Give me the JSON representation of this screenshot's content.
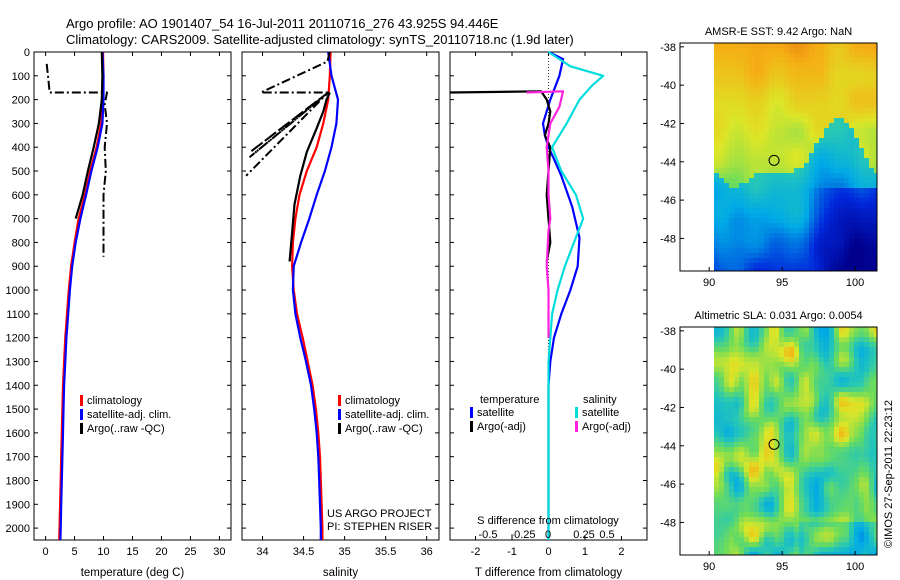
{
  "header": {
    "title_line1": "Argo profile: AO 1901407_54 16-Jul-2011 20110716_276 43.925S 94.446E",
    "title_line2": "Climatology: CARS2009. Satellite-adjusted climatology: synTS_20110718.nc (1.9d later)"
  },
  "footer": {
    "project_line1": "US ARGO PROJECT",
    "project_line2": "PI: STEPHEN RISER",
    "credit": "©IMOS 27-Sep-2011 22:23:12"
  },
  "colors": {
    "climatology": "#ff0000",
    "satellite": "#0000ff",
    "argo": "#000000",
    "satellite_salinity": "#00dddd",
    "argo_salinity": "#ff22dd"
  },
  "chart_data": [
    {
      "id": "temp",
      "type": "line",
      "xlabel": "temperature (deg C)",
      "ylabel": "",
      "xlim": [
        -2,
        32
      ],
      "ylim": [
        2050,
        0
      ],
      "xticks": [
        0,
        5,
        10,
        15,
        20,
        25,
        30
      ],
      "yticks": [
        0,
        100,
        200,
        300,
        400,
        500,
        600,
        700,
        800,
        900,
        1000,
        1100,
        1200,
        1300,
        1400,
        1500,
        1600,
        1700,
        1800,
        1900,
        2000
      ],
      "legend": [
        "climatology",
        "satellite-adj. clim.",
        "Argo(..raw -QC)"
      ],
      "series": [
        {
          "name": "climatology",
          "color": "#ff0000",
          "style": "solid",
          "x": [
            9.9,
            10.0,
            9.9,
            9.6,
            8.8,
            7.7,
            6.8,
            5.7,
            5.0,
            4.4,
            4.0,
            3.7,
            3.4,
            3.2,
            3.0,
            2.9,
            2.8,
            2.7,
            2.6,
            2.5,
            2.4,
            2.35
          ],
          "y": [
            0,
            100,
            200,
            300,
            400,
            500,
            600,
            700,
            800,
            900,
            1000,
            1100,
            1200,
            1300,
            1400,
            1500,
            1600,
            1700,
            1800,
            1900,
            2000,
            2050
          ]
        },
        {
          "name": "satellite-adj. clim.",
          "color": "#0000ff",
          "style": "solid",
          "x": [
            9.8,
            10.0,
            10.0,
            9.8,
            9.0,
            7.9,
            7.0,
            6.0,
            5.2,
            4.6,
            4.2,
            3.9,
            3.6,
            3.4,
            3.2,
            3.1,
            3.0,
            2.9,
            2.8,
            2.7,
            2.6,
            2.55
          ],
          "y": [
            0,
            100,
            200,
            300,
            400,
            500,
            600,
            700,
            800,
            900,
            1000,
            1100,
            1200,
            1300,
            1400,
            1500,
            1600,
            1700,
            1800,
            1900,
            2000,
            2050
          ]
        },
        {
          "name": "Argo(..raw -QC)",
          "color": "#000000",
          "style": "solid",
          "x": [
            9.7,
            9.8,
            9.7,
            9.2,
            8.3,
            7.3,
            6.4,
            5.2
          ],
          "y": [
            0,
            100,
            200,
            300,
            400,
            500,
            600,
            700
          ]
        },
        {
          "name": "Argo raw",
          "color": "#000000",
          "style": "dashdot",
          "x": [
            0.2,
            0.5,
            0.7,
            10.6,
            10.2,
            10.6,
            10.2,
            10.4,
            10.0,
            10.0
          ],
          "y": [
            50,
            120,
            170,
            170,
            220,
            300,
            400,
            500,
            600,
            860
          ]
        }
      ]
    },
    {
      "id": "sal",
      "type": "line",
      "xlabel": "salinity",
      "ylabel": "",
      "xlim": [
        33.75,
        36.15
      ],
      "ylim": [
        2050,
        0
      ],
      "xticks": [
        34,
        34.5,
        35,
        35.5,
        36
      ],
      "legend": [
        "climatology",
        "satellite-adj. clim.",
        "Argo(..raw -QC)"
      ],
      "series": [
        {
          "name": "climatology",
          "color": "#ff0000",
          "style": "solid",
          "x": [
            34.83,
            34.82,
            34.8,
            34.74,
            34.66,
            34.54,
            34.45,
            34.4,
            34.37,
            34.36,
            34.38,
            34.42,
            34.49,
            34.55,
            34.61,
            34.65,
            34.68,
            34.7,
            34.71,
            34.72,
            34.73,
            34.73
          ],
          "y": [
            0,
            100,
            200,
            300,
            400,
            500,
            600,
            700,
            800,
            900,
            1000,
            1100,
            1200,
            1300,
            1400,
            1500,
            1600,
            1700,
            1800,
            1900,
            2000,
            2050
          ]
        },
        {
          "name": "satellite-adj. clim.",
          "color": "#0000ff",
          "style": "solid",
          "x": [
            34.8,
            34.84,
            34.92,
            34.9,
            34.84,
            34.76,
            34.66,
            34.57,
            34.47,
            34.38,
            34.37,
            34.4,
            34.46,
            34.53,
            34.59,
            34.63,
            34.66,
            34.68,
            34.69,
            34.7,
            34.71,
            34.71
          ],
          "y": [
            0,
            100,
            200,
            300,
            400,
            500,
            600,
            700,
            800,
            900,
            1000,
            1100,
            1200,
            1300,
            1400,
            1500,
            1600,
            1700,
            1800,
            1900,
            2000,
            2050
          ]
        },
        {
          "name": "Argo(..raw -QC)",
          "color": "#000000",
          "style": "solid",
          "x": [
            34.82,
            34.78,
            34.74,
            34.66,
            34.54,
            34.46,
            34.39,
            34.36,
            34.33
          ],
          "y": [
            170,
            200,
            250,
            320,
            420,
            520,
            640,
            760,
            880
          ]
        },
        {
          "name": "Argo raw",
          "color": "#000000",
          "style": "dashdot",
          "x": [
            34.82,
            34.79,
            33.98,
            34.8,
            33.85,
            34.8,
            33.85,
            34.8,
            33.8
          ],
          "y": [
            0,
            40,
            170,
            170,
            420,
            170,
            440,
            170,
            520
          ]
        }
      ]
    },
    {
      "id": "diff",
      "type": "line",
      "xlabel": "T difference from climatology",
      "ylabel": "",
      "xlim": [
        -2.7,
        2.7
      ],
      "ylim": [
        2050,
        0
      ],
      "xticks": [
        -2,
        -1,
        0,
        1,
        2
      ],
      "top_axis_label": "S difference from climatology",
      "top_axis_ticks": [
        "-0.5",
        "-0.25",
        "0",
        "0.25",
        "0.5"
      ],
      "legend_titles": [
        "temperature",
        "salinity"
      ],
      "legend": [
        "satellite",
        "Argo(-adj)",
        "satellite",
        "Argo(-adj)"
      ],
      "series": [
        {
          "name": "satellite",
          "group": "temperature",
          "color": "#0000ff",
          "style": "solid",
          "x": [
            0,
            0.4,
            0.3,
            0.05,
            -0.15,
            -0.1,
            0.0,
            0.15,
            0.35,
            0.65,
            0.85,
            0.8,
            0.6,
            0.35,
            0.15,
            0.05,
            0.0,
            0.0,
            0.0,
            0.0,
            0.0
          ],
          "y": [
            0,
            30,
            100,
            200,
            300,
            350,
            400,
            450,
            520,
            650,
            780,
            900,
            1000,
            1100,
            1200,
            1300,
            1400,
            1600,
            1800,
            2000,
            2050
          ]
        },
        {
          "name": "Argo(-adj)",
          "group": "temperature",
          "color": "#000000",
          "style": "solid",
          "x": [
            -2.7,
            -0.2,
            -0.05,
            0.05,
            0.0,
            -0.1,
            0.05,
            0.0,
            -0.05,
            0.0,
            0.05,
            -0.05
          ],
          "y": [
            170,
            165,
            200,
            250,
            300,
            350,
            400,
            500,
            600,
            700,
            800,
            880
          ]
        },
        {
          "name": "satellite",
          "group": "salinity",
          "color": "#00dddd",
          "style": "solid",
          "x": [
            0,
            0.6,
            1.5,
            1.2,
            0.85,
            0.5,
            0.1,
            0.35,
            0.75,
            0.95,
            0.7,
            0.45,
            0.25,
            0.1,
            0.05,
            0.0,
            0.0,
            0.0,
            0.0,
            0.0
          ],
          "y": [
            0,
            60,
            100,
            140,
            200,
            300,
            400,
            500,
            600,
            700,
            800,
            900,
            1000,
            1100,
            1200,
            1300,
            1500,
            1700,
            1900,
            2050
          ]
        },
        {
          "name": "Argo(-adj)",
          "group": "salinity",
          "color": "#ff22dd",
          "style": "solid",
          "x": [
            -0.6,
            0.4,
            0.3,
            0.05,
            0.0,
            -0.05,
            0.0,
            0.0,
            0.05,
            0.0,
            -0.05,
            0.0,
            0.0
          ],
          "y": [
            170,
            165,
            230,
            300,
            350,
            400,
            500,
            600,
            700,
            750,
            900,
            1000,
            1200
          ]
        }
      ]
    },
    {
      "id": "sst_map",
      "type": "heatmap",
      "title": "AMSR-E SST: 9.42 Argo: NaN",
      "xlim": [
        88,
        101.5
      ],
      "ylim": [
        -49.7,
        -37.8
      ],
      "xticks": [
        90,
        95,
        100
      ],
      "yticks": [
        -38,
        -40,
        -42,
        -44,
        -46,
        -48
      ],
      "marker": {
        "lon": 94.446,
        "lat": -43.925
      }
    },
    {
      "id": "sla_map",
      "type": "heatmap",
      "title": "Altimetric SLA: 0.031 Argo: 0.0054",
      "xlim": [
        88,
        101.5
      ],
      "ylim": [
        -49.7,
        -37.8
      ],
      "xticks": [
        90,
        95,
        100
      ],
      "yticks": [
        -38,
        -40,
        -42,
        -44,
        -46,
        -48
      ],
      "marker": {
        "lon": 94.446,
        "lat": -43.925
      }
    }
  ]
}
